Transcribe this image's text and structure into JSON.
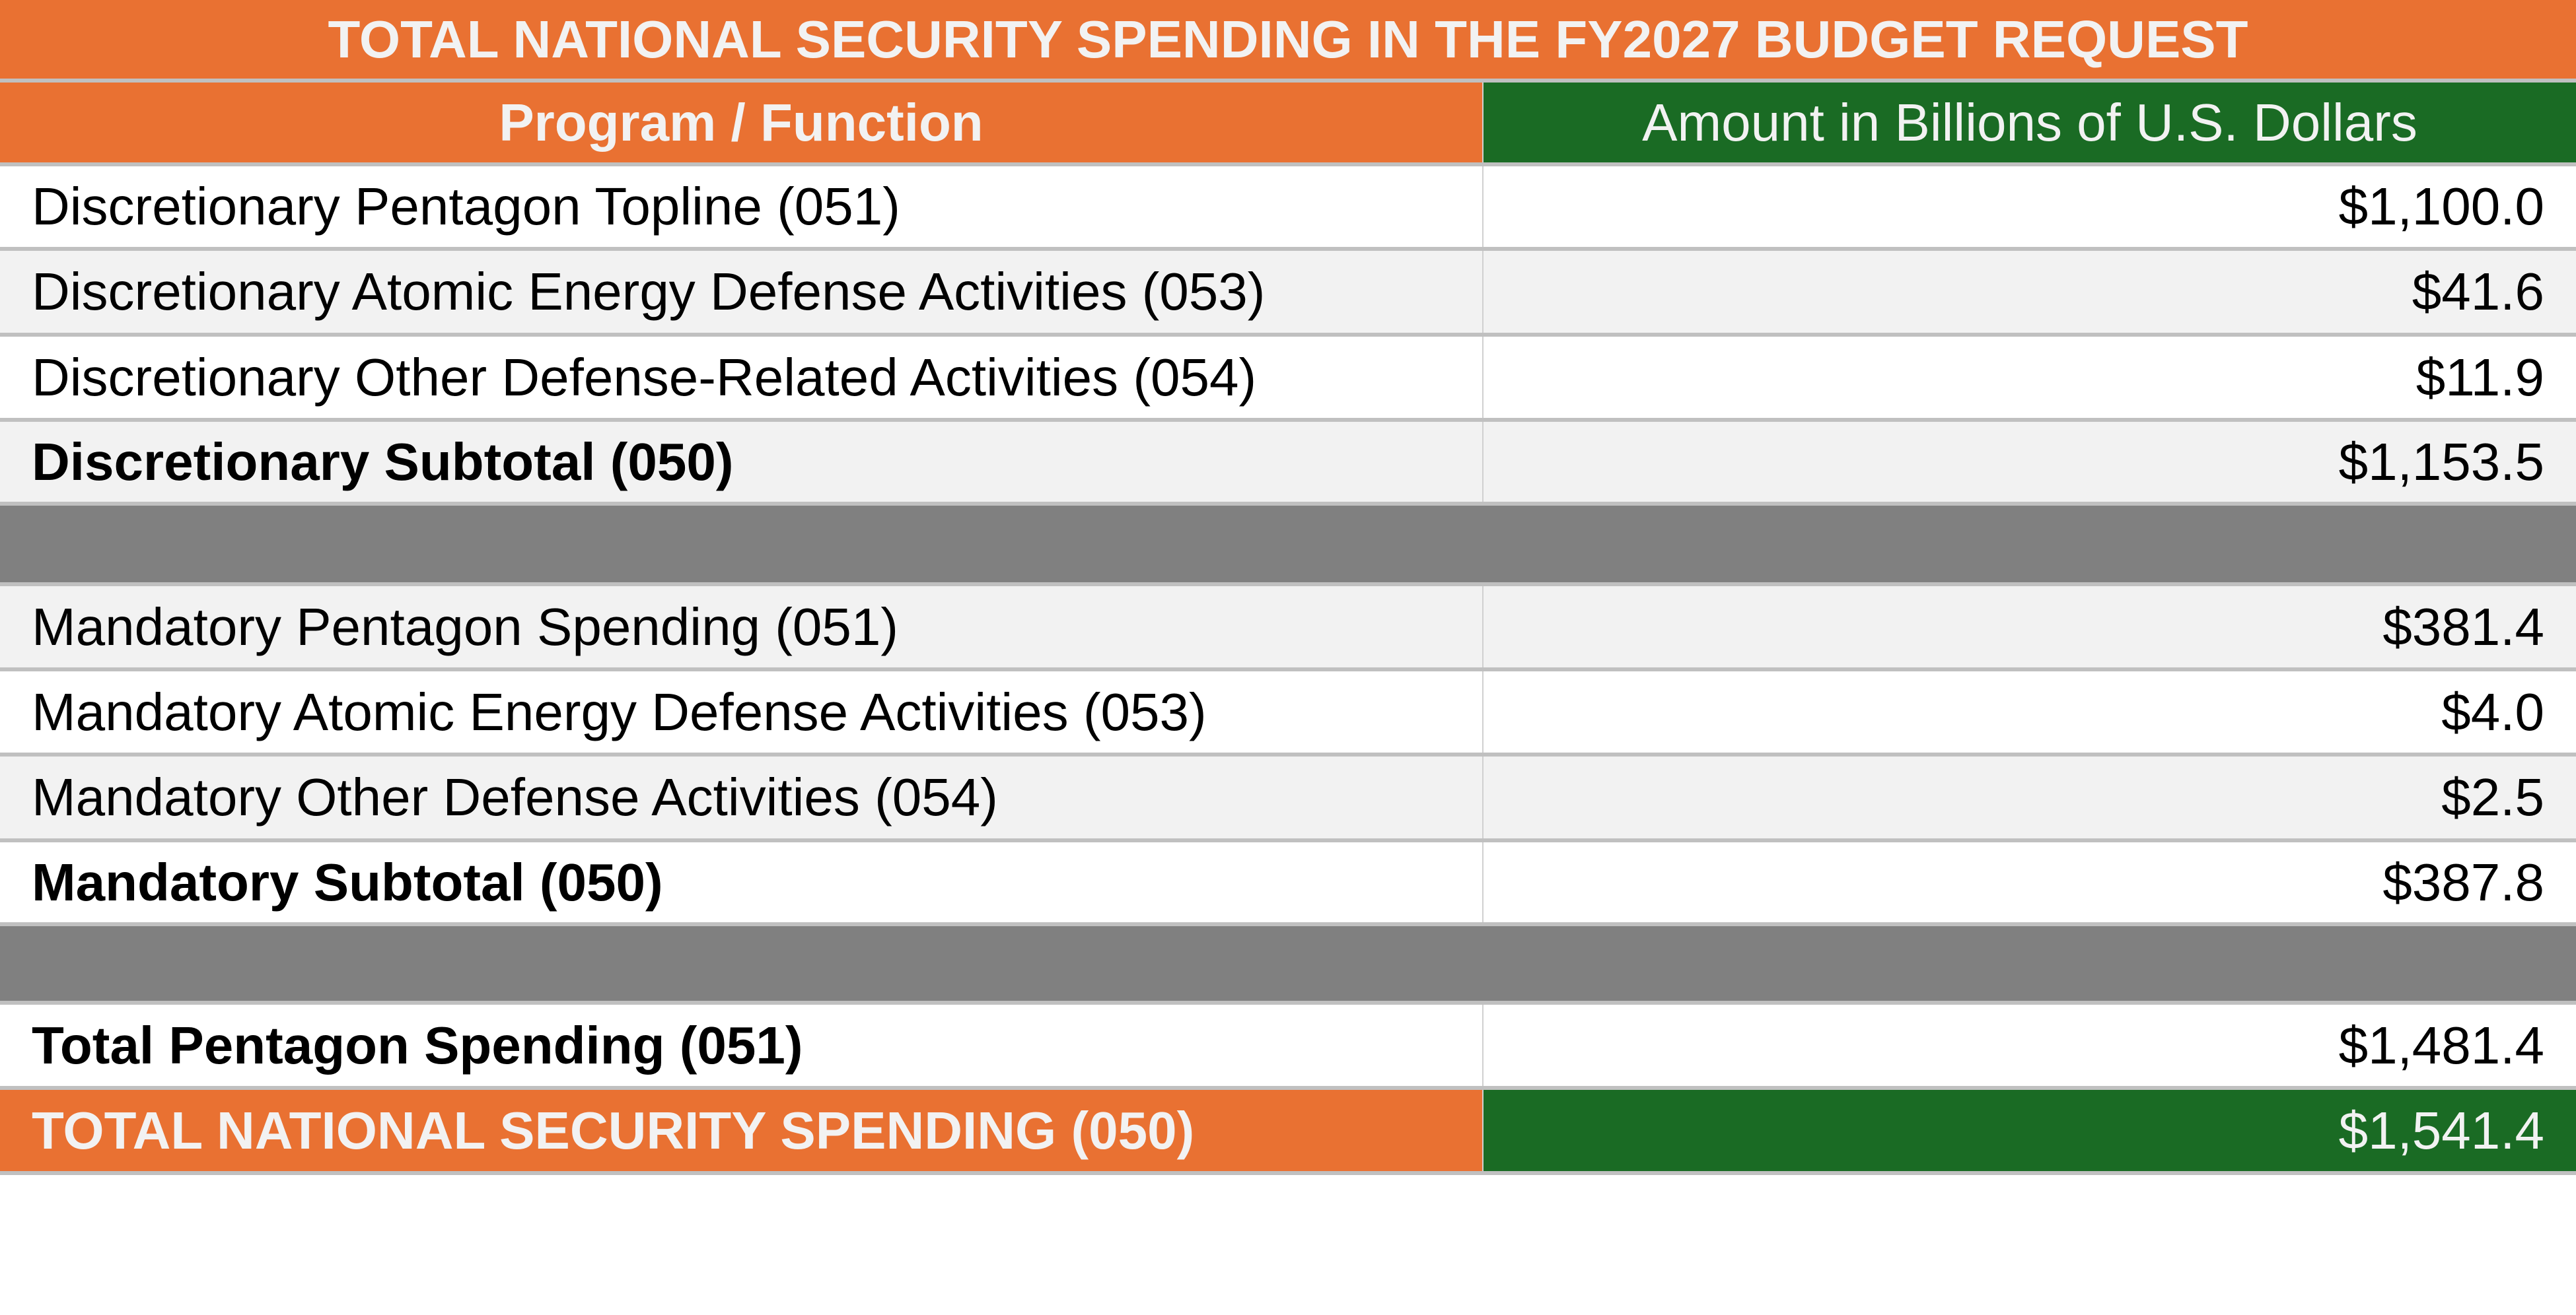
{
  "title": "TOTAL NATIONAL SECURITY SPENDING IN THE FY2027 BUDGET REQUEST",
  "headers": {
    "program": "Program / Function",
    "amount": "Amount in Billions of U.S. Dollars"
  },
  "rows": [
    {
      "label": "Discretionary Pentagon Topline (051)",
      "value": "$1,100.0"
    },
    {
      "label": "Discretionary Atomic Energy Defense Activities (053)",
      "value": "$41.6"
    },
    {
      "label": "Discretionary Other Defense-Related Activities (054)",
      "value": "$11.9"
    },
    {
      "label": "Discretionary Subtotal (050)",
      "value": "$1,153.5"
    },
    {
      "label": "Mandatory Pentagon Spending (051)",
      "value": "$381.4"
    },
    {
      "label": "Mandatory Atomic Energy Defense Activities (053)",
      "value": "$4.0"
    },
    {
      "label": "Mandatory Other Defense Activities (054)",
      "value": "$2.5"
    },
    {
      "label": "Mandatory Subtotal (050)",
      "value": "$387.8"
    },
    {
      "label": "Total Pentagon Spending (051)",
      "value": "$1,481.4"
    },
    {
      "label": "TOTAL NATIONAL SECURITY SPENDING (050)",
      "value": "$1,541.4"
    }
  ],
  "colors": {
    "orange": "#e97132",
    "green": "#1a6b24",
    "separator_gray": "#808080",
    "alt_row": "#f2f2f2"
  }
}
